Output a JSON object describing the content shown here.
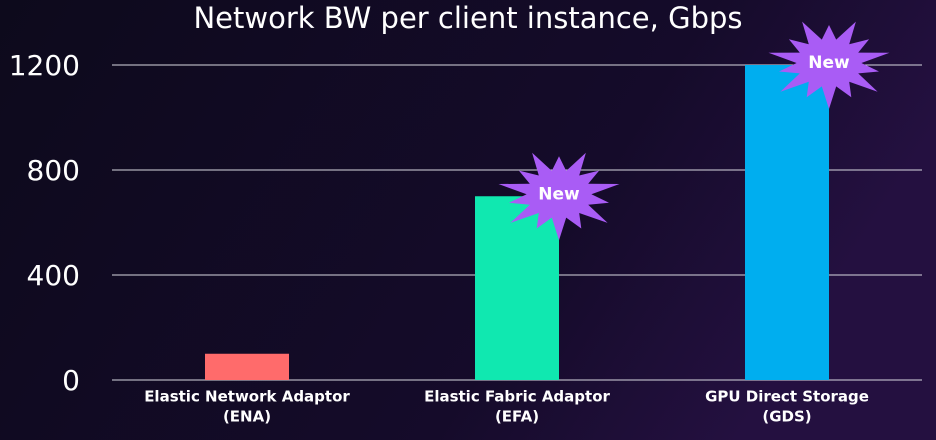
{
  "chart_data": {
    "type": "bar",
    "title": "Network BW per client instance, Gbps",
    "categories": [
      [
        "Elastic Network Adaptor",
        "(ENA)"
      ],
      [
        "Elastic Fabric Adaptor",
        "(EFA)"
      ],
      [
        "GPU Direct Storage",
        "(GDS)"
      ]
    ],
    "values": [
      100,
      700,
      1200
    ],
    "colors": [
      "#ff6b6b",
      "#10e8b0",
      "#00aeef"
    ],
    "annotations": [
      null,
      "New",
      "New"
    ],
    "ylim": [
      0,
      1200
    ],
    "yticks": [
      0,
      400,
      800,
      1200
    ],
    "grid": true
  }
}
